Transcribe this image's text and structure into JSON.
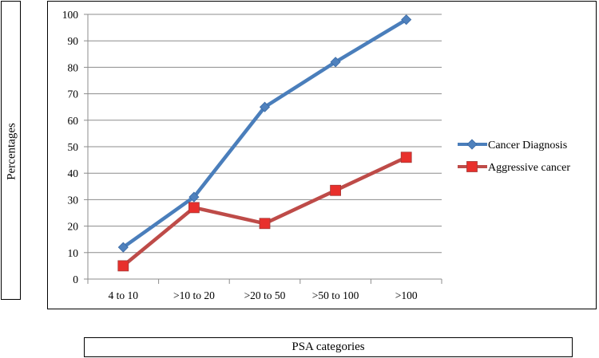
{
  "chart_data": {
    "type": "line",
    "title": "",
    "xlabel": "PSA categories",
    "ylabel": "Percentages",
    "categories": [
      "4 to 10",
      ">10 to 20",
      ">20 to 50",
      ">50 to 100",
      ">100"
    ],
    "ylim": [
      0,
      100
    ],
    "yticks": [
      0,
      10,
      20,
      30,
      40,
      50,
      60,
      70,
      80,
      90,
      100
    ],
    "grid": "horizontal",
    "legend": "right",
    "series": [
      {
        "name": "Cancer Diagnosis",
        "values": [
          12,
          31,
          65,
          82,
          98
        ],
        "color": "#4A7EBB",
        "marker": "diamond"
      },
      {
        "name": "Aggressive cancer",
        "values": [
          5,
          27,
          21,
          33.5,
          46
        ],
        "color": "#BE4B48",
        "marker": "square"
      }
    ]
  }
}
